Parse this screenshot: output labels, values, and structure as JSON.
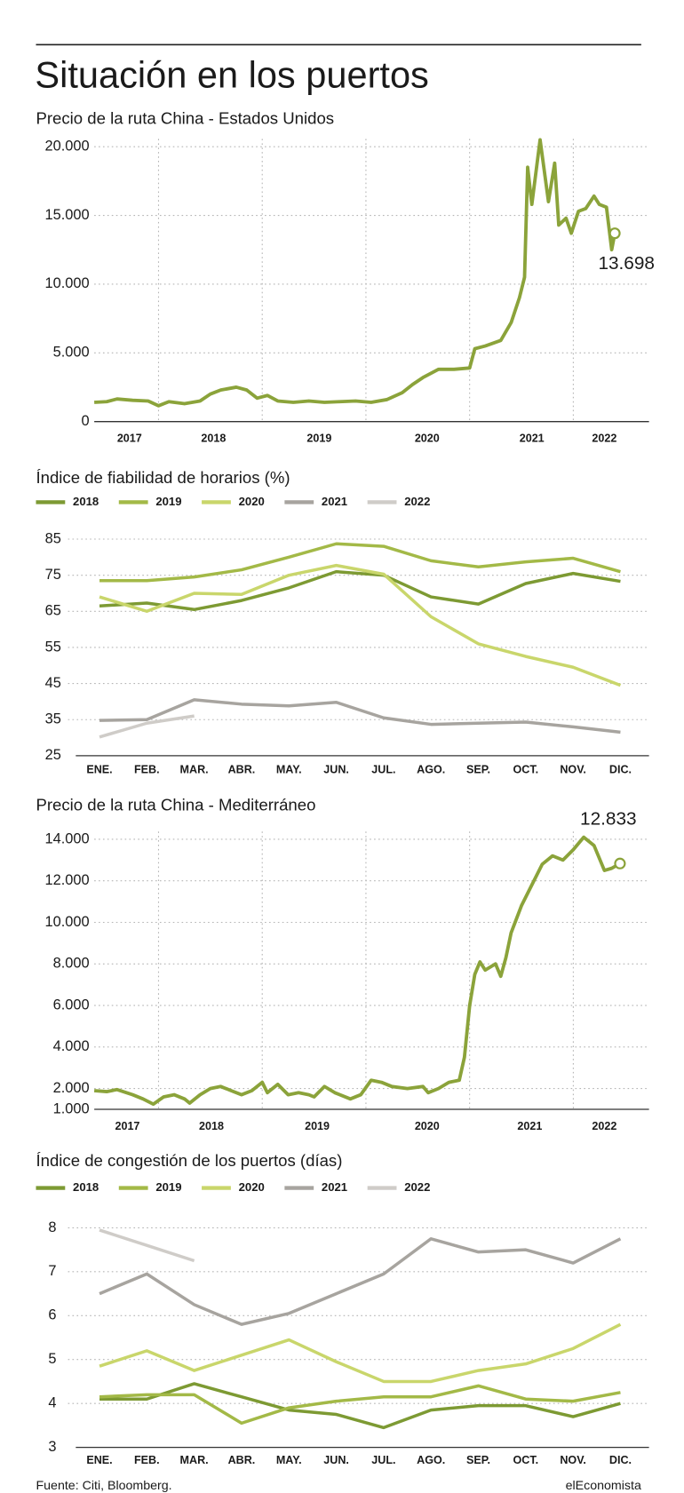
{
  "title": "Situación en los puertos",
  "source": "Fuente: Citi, Bloomberg.",
  "brand": "elEconomista",
  "chart_data": [
    {
      "type": "line",
      "title": "Precio de la ruta China - Estados Unidos",
      "color": "#8ba33a",
      "x": [
        2017.38,
        2017.5,
        2017.6,
        2017.75,
        2017.9,
        2018.0,
        2018.1,
        2018.25,
        2018.4,
        2018.5,
        2018.6,
        2018.75,
        2018.85,
        2018.95,
        2019.05,
        2019.15,
        2019.3,
        2019.45,
        2019.6,
        2019.75,
        2019.9,
        2020.05,
        2020.2,
        2020.35,
        2020.45,
        2020.55,
        2020.7,
        2020.85,
        2021.0,
        2021.05,
        2021.15,
        2021.3,
        2021.4,
        2021.48,
        2021.53,
        2021.56,
        2021.6,
        2021.68,
        2021.76,
        2021.82,
        2021.86,
        2021.93,
        2021.98,
        2022.05,
        2022.12,
        2022.2,
        2022.25,
        2022.32,
        2022.37,
        2022.4
      ],
      "values": [
        1400,
        1450,
        1650,
        1550,
        1500,
        1150,
        1450,
        1300,
        1500,
        2000,
        2300,
        2500,
        2300,
        1700,
        1900,
        1500,
        1400,
        1500,
        1400,
        1450,
        1500,
        1400,
        1600,
        2100,
        2700,
        3200,
        3800,
        3800,
        3900,
        5300,
        5500,
        5900,
        7200,
        9000,
        10500,
        18500,
        15800,
        20500,
        16000,
        18800,
        14300,
        14800,
        13700,
        15300,
        15500,
        16400,
        15800,
        15600,
        12500,
        13698
      ],
      "value_labels": [
        null,
        null,
        null,
        null,
        null,
        null,
        null,
        null,
        null,
        null,
        null,
        null,
        null,
        null,
        null,
        null,
        null,
        null,
        null,
        null,
        null,
        null,
        null,
        null,
        null,
        null,
        null,
        null,
        null,
        null,
        null,
        null,
        null,
        null,
        null,
        null,
        null,
        null,
        null,
        null,
        null,
        null,
        null,
        null,
        null,
        null,
        null,
        null,
        null,
        "13.698"
      ],
      "xlim": [
        2017.38,
        2022.73
      ],
      "xticks": [
        {
          "value": 2017.72,
          "label": "2017"
        },
        {
          "value": 2018.53,
          "label": "2018"
        },
        {
          "value": 2019.55,
          "label": "2019"
        },
        {
          "value": 2020.59,
          "label": "2020"
        },
        {
          "value": 2021.6,
          "label": "2021"
        },
        {
          "value": 2022.3,
          "label": "2022"
        }
      ],
      "xgrid": [
        2018,
        2019,
        2020,
        2021,
        2022
      ],
      "ylim": [
        0,
        20000
      ],
      "yticks": [
        0,
        {
          "value": 5000,
          "label": "5.000"
        },
        {
          "value": 10000,
          "label": "10.000"
        },
        {
          "value": 15000,
          "label": "15.000"
        },
        {
          "value": 20000,
          "label": "20.000"
        }
      ],
      "grid": true
    },
    {
      "type": "line",
      "title": "Índice de fiabilidad de horarios (%)",
      "categories": [
        "ENE.",
        "FEB.",
        "MAR.",
        "ABR.",
        "MAY.",
        "JUN.",
        "JUL.",
        "AGO.",
        "SEP.",
        "OCT.",
        "NOV.",
        "DIC."
      ],
      "series": [
        {
          "name": "2018",
          "color": "#7d9a33",
          "values": [
            66.5,
            67.3,
            65.5,
            68,
            71.5,
            76,
            75,
            69,
            67,
            72.7,
            75.5,
            73.3
          ]
        },
        {
          "name": "2019",
          "color": "#a3b947",
          "values": [
            73.5,
            73.5,
            74.5,
            76.5,
            80,
            83.7,
            83,
            79,
            77.3,
            78.7,
            79.7,
            76
          ]
        },
        {
          "name": "2020",
          "color": "#c9d66b",
          "values": [
            69,
            65,
            70,
            69.7,
            75,
            77.7,
            75.3,
            63.5,
            56,
            52.5,
            49.5,
            44.5
          ]
        },
        {
          "name": "2021",
          "color": "#a7a49f",
          "values": [
            34.8,
            35,
            40.5,
            39.3,
            38.8,
            39.8,
            35.5,
            33.7,
            34,
            34.3,
            33,
            31.5
          ]
        },
        {
          "name": "2022",
          "color": "#cfccc8",
          "values": [
            30.2,
            34,
            36,
            null,
            null,
            null,
            null,
            null,
            null,
            null,
            null,
            null
          ]
        }
      ],
      "ylim": [
        25,
        85
      ],
      "yticks": [
        25,
        35,
        45,
        55,
        65,
        75,
        85
      ],
      "grid": true
    },
    {
      "type": "line",
      "title": "Precio de la ruta China - Mediterráneo",
      "color": "#8ba33a",
      "x": [
        2017.38,
        2017.5,
        2017.6,
        2017.75,
        2017.85,
        2017.95,
        2018.05,
        2018.15,
        2018.25,
        2018.3,
        2018.4,
        2018.5,
        2018.6,
        2018.7,
        2018.8,
        2018.9,
        2019.0,
        2019.05,
        2019.15,
        2019.25,
        2019.35,
        2019.45,
        2019.5,
        2019.6,
        2019.7,
        2019.85,
        2019.95,
        2020.05,
        2020.15,
        2020.25,
        2020.4,
        2020.55,
        2020.6,
        2020.7,
        2020.8,
        2020.9,
        2020.95,
        2021.0,
        2021.05,
        2021.1,
        2021.15,
        2021.25,
        2021.3,
        2021.35,
        2021.4,
        2021.5,
        2021.6,
        2021.7,
        2021.8,
        2021.9,
        2022.0,
        2022.1,
        2022.2,
        2022.3,
        2022.37,
        2022.45
      ],
      "values": [
        1900,
        1850,
        1950,
        1700,
        1500,
        1250,
        1600,
        1700,
        1500,
        1300,
        1700,
        2000,
        2100,
        1900,
        1700,
        1900,
        2300,
        1800,
        2200,
        1700,
        1800,
        1700,
        1600,
        2100,
        1800,
        1500,
        1700,
        2400,
        2300,
        2100,
        2000,
        2100,
        1800,
        2000,
        2300,
        2400,
        3500,
        6000,
        7500,
        8100,
        7700,
        8000,
        7400,
        8300,
        9500,
        10800,
        11800,
        12800,
        13200,
        13000,
        13500,
        14100,
        13700,
        12500,
        12600,
        12833
      ],
      "value_labels": [
        null,
        null,
        null,
        null,
        null,
        null,
        null,
        null,
        null,
        null,
        null,
        null,
        null,
        null,
        null,
        null,
        null,
        null,
        null,
        null,
        null,
        null,
        null,
        null,
        null,
        null,
        null,
        null,
        null,
        null,
        null,
        null,
        null,
        null,
        null,
        null,
        null,
        null,
        null,
        null,
        null,
        null,
        null,
        null,
        null,
        null,
        null,
        null,
        null,
        null,
        null,
        null,
        null,
        null,
        null,
        "12.833"
      ],
      "xlim": [
        2017.38,
        2022.73
      ],
      "xticks": [
        {
          "value": 2017.7,
          "label": "2017"
        },
        {
          "value": 2018.51,
          "label": "2018"
        },
        {
          "value": 2019.53,
          "label": "2019"
        },
        {
          "value": 2020.59,
          "label": "2020"
        },
        {
          "value": 2021.58,
          "label": "2021"
        },
        {
          "value": 2022.3,
          "label": "2022"
        }
      ],
      "xgrid": [
        2018,
        2019,
        2020,
        2021,
        2022
      ],
      "ylim": [
        1000,
        14000
      ],
      "yticks": [
        {
          "value": 1000,
          "label": "1.000"
        },
        {
          "value": 2000,
          "label": "2.000"
        },
        {
          "value": 4000,
          "label": "4.000"
        },
        {
          "value": 6000,
          "label": "6.000"
        },
        {
          "value": 8000,
          "label": "8.000"
        },
        {
          "value": 10000,
          "label": "10.000"
        },
        {
          "value": 12000,
          "label": "12.000"
        },
        {
          "value": 14000,
          "label": "14.000"
        }
      ],
      "grid": true
    },
    {
      "type": "line",
      "title": "Índice de congestión de los puertos (días)",
      "categories": [
        "ENE.",
        "FEB.",
        "MAR.",
        "ABR.",
        "MAY.",
        "JUN.",
        "JUL.",
        "AGO.",
        "SEP.",
        "OCT.",
        "NOV.",
        "DIC."
      ],
      "series": [
        {
          "name": "2018",
          "color": "#7d9a33",
          "values": [
            4.1,
            4.1,
            4.45,
            4.15,
            3.85,
            3.75,
            3.45,
            3.85,
            3.95,
            3.95,
            3.7,
            4.0
          ]
        },
        {
          "name": "2019",
          "color": "#a3b947",
          "values": [
            4.15,
            4.2,
            4.2,
            3.55,
            3.9,
            4.05,
            4.15,
            4.15,
            4.4,
            4.1,
            4.05,
            4.25
          ]
        },
        {
          "name": "2020",
          "color": "#c9d66b",
          "values": [
            4.85,
            5.2,
            4.75,
            5.1,
            5.45,
            4.95,
            4.5,
            4.5,
            4.75,
            4.9,
            5.25,
            5.8
          ]
        },
        {
          "name": "2021",
          "color": "#a7a49f",
          "values": [
            6.5,
            6.95,
            6.25,
            5.8,
            6.05,
            6.5,
            6.95,
            7.75,
            7.45,
            7.5,
            7.2,
            7.75
          ]
        },
        {
          "name": "2022",
          "color": "#cfccc8",
          "values": [
            7.95,
            7.6,
            7.25,
            null,
            null,
            null,
            null,
            null,
            null,
            null,
            null,
            null
          ]
        }
      ],
      "ylim": [
        3,
        8
      ],
      "yticks": [
        3,
        4,
        5,
        6,
        7,
        8
      ],
      "grid": true
    }
  ]
}
